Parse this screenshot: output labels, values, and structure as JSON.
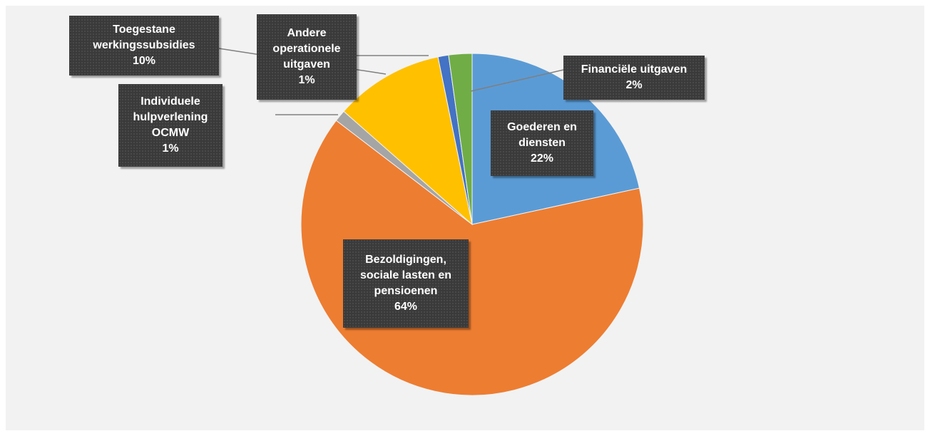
{
  "chart_data": {
    "type": "pie",
    "start_angle_deg": 0,
    "direction": "clockwise",
    "legend": "none",
    "slices": [
      {
        "label_lines": [
          "Goederen en",
          "diensten"
        ],
        "percent_label": "22%",
        "value": 21.6,
        "color": "#5b9bd5"
      },
      {
        "label_lines": [
          "Bezoldigingen,",
          "sociale lasten en",
          "pensioenen"
        ],
        "percent_label": "64%",
        "value": 63.8,
        "color": "#ed7d31"
      },
      {
        "label_lines": [
          "Individuele",
          "hulpverlening",
          "OCMW"
        ],
        "percent_label": "1%",
        "value": 1.1,
        "color": "#a5a5a5"
      },
      {
        "label_lines": [
          "Toegestane",
          "werkingssubsidies"
        ],
        "percent_label": "10%",
        "value": 10.3,
        "color": "#ffc000"
      },
      {
        "label_lines": [
          "Andere",
          "operationele",
          "uitgaven"
        ],
        "percent_label": "1%",
        "value": 1.0,
        "color": "#4472c4"
      },
      {
        "label_lines": [
          "Financiële uitgaven"
        ],
        "percent_label": "2%",
        "value": 2.2,
        "color": "#70ad47"
      }
    ]
  }
}
